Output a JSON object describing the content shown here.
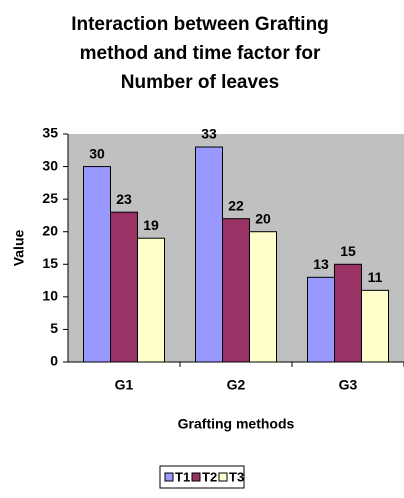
{
  "chart_data": {
    "type": "bar",
    "title": "Interaction between Grafting method and time factor for Number of leaves",
    "x_label": "Grafting methods",
    "y_label": "Value",
    "categories": [
      "G1",
      "G2",
      "G3"
    ],
    "series": [
      {
        "name": "T1",
        "color": "#9999ff",
        "values": [
          30,
          33,
          13
        ]
      },
      {
        "name": "T2",
        "color": "#993366",
        "values": [
          23,
          22,
          15
        ]
      },
      {
        "name": "T3",
        "color": "#ffffcc",
        "values": [
          19,
          20,
          11
        ]
      }
    ],
    "ylim": [
      0,
      35
    ],
    "yticks": [
      0,
      5,
      10,
      15,
      20,
      25,
      30,
      35
    ],
    "grid": false,
    "legend": "bottom"
  }
}
